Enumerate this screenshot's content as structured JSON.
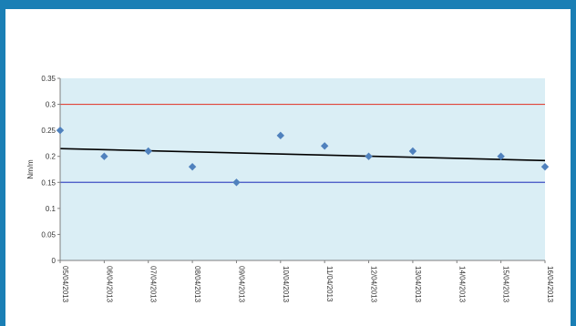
{
  "chart_data": {
    "type": "scatter",
    "title": "",
    "xlabel": "",
    "ylabel": "Nm/m",
    "ylim": [
      0,
      0.35
    ],
    "y_ticks": [
      "0",
      "0.05",
      "0.1",
      "0.15",
      "0.2",
      "0.25",
      "0.3",
      "0.35"
    ],
    "x_tick_labels": [
      "05/04/2013",
      "06/04/2013",
      "07/04/2013",
      "08/04/2013",
      "09/04/2013",
      "10/04/2013",
      "11/04/2013",
      "12/04/2013",
      "13/04/2013",
      "14/04/2013",
      "15/04/2013",
      "16/04/2013"
    ],
    "series": [
      {
        "marker": "diamond",
        "color": "#4f81bd",
        "points": [
          {
            "x": "05/04/2013",
            "y": 0.25
          },
          {
            "x": "06/04/2013",
            "y": 0.2
          },
          {
            "x": "07/04/2013",
            "y": 0.21
          },
          {
            "x": "08/04/2013",
            "y": 0.18
          },
          {
            "x": "09/04/2013",
            "y": 0.15
          },
          {
            "x": "10/04/2013",
            "y": 0.24
          },
          {
            "x": "11/04/2013",
            "y": 0.22
          },
          {
            "x": "12/04/2013",
            "y": 0.2
          },
          {
            "x": "13/04/2013",
            "y": 0.21
          },
          {
            "x": "15/04/2013",
            "y": 0.2
          },
          {
            "x": "16/04/2013",
            "y": 0.18
          }
        ]
      }
    ],
    "reference_lines": [
      {
        "y": 0.3,
        "color": "#e0453a"
      },
      {
        "y": 0.15,
        "color": "#3f4fc4"
      }
    ],
    "trendline": {
      "from": {
        "x": "05/04/2013",
        "y": 0.215
      },
      "to": {
        "x": "16/04/2013",
        "y": 0.192
      },
      "color": "#000000"
    },
    "plot_background": "#daeef5",
    "grid": false,
    "legend": "none"
  }
}
